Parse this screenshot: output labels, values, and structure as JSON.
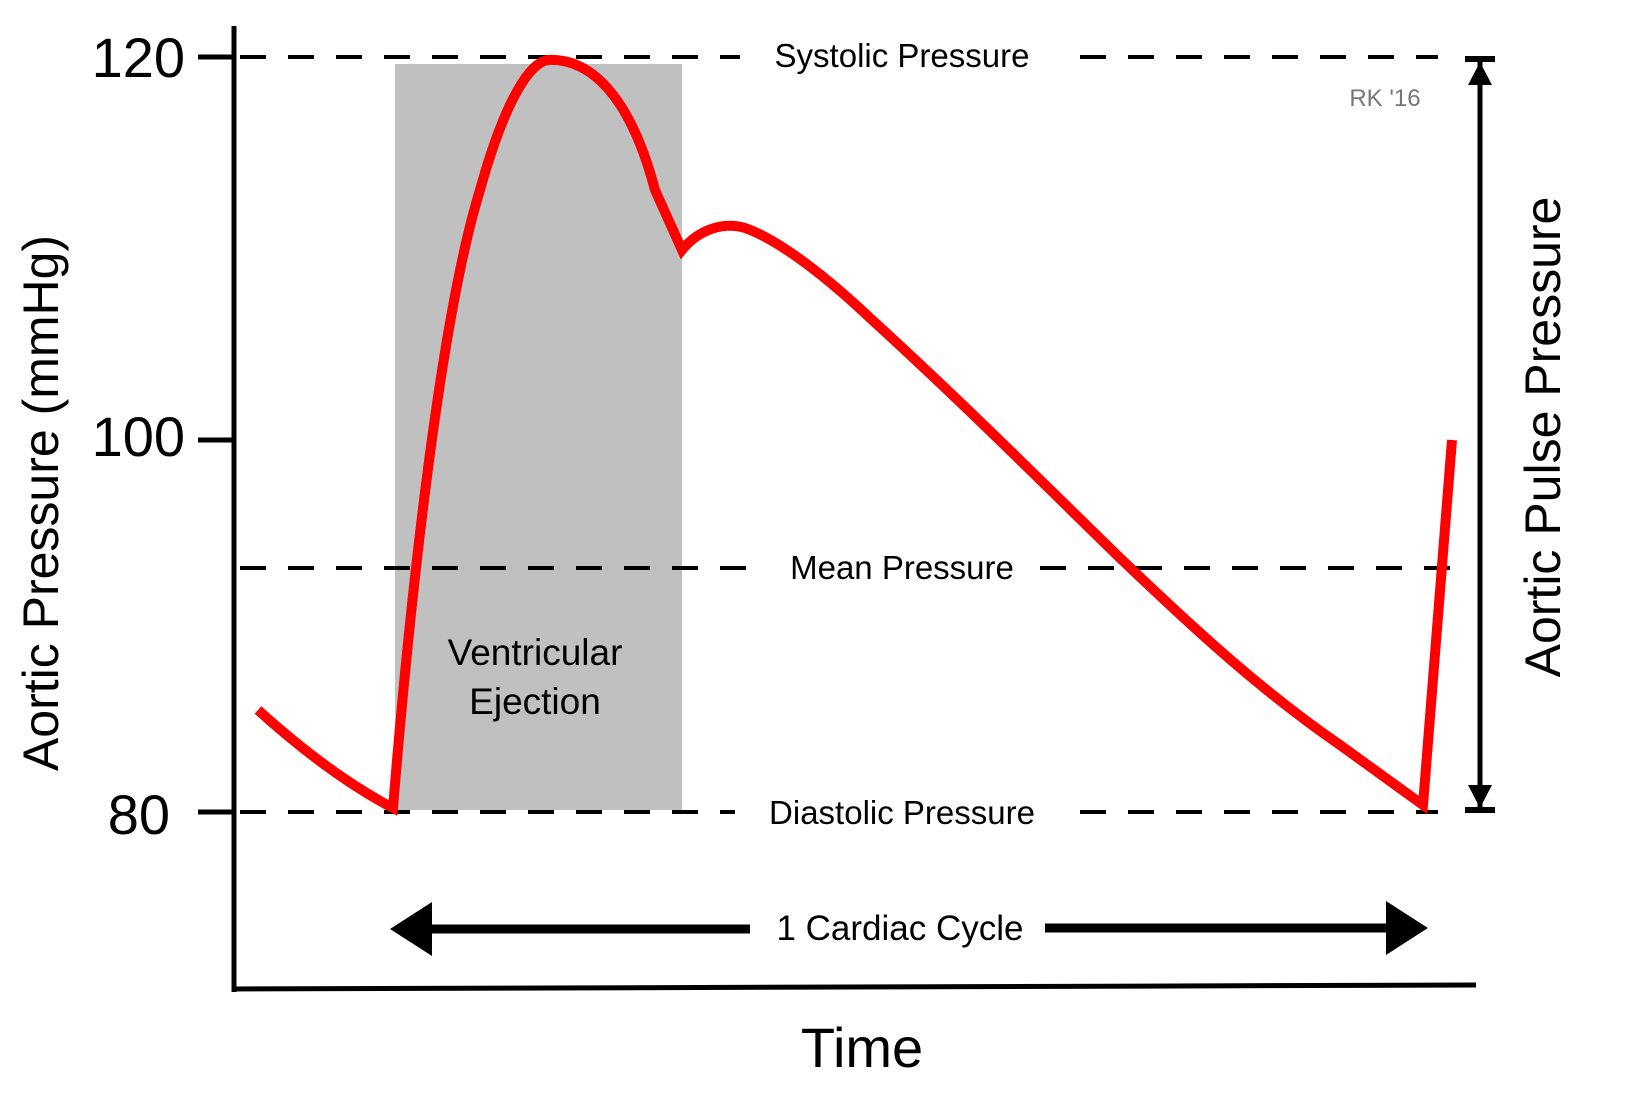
{
  "chart_data": {
    "type": "line",
    "title": "",
    "xlabel": "Time",
    "ylabel": "Aortic Pressure (mmHg)",
    "y_ticks": [
      "120",
      "100",
      "80"
    ],
    "ylim": [
      70,
      121
    ],
    "grid": false,
    "series": [
      {
        "name": "Aortic pressure waveform",
        "color": "#ff0000",
        "points_description": "Diastolic decay from ~85 to 80 mmHg, rapid rise during ventricular ejection to 120 mmHg peak, fall to ~111 mmHg dicrotic notch at end of ejection, small rebound ~112, then linear decay to 80 mmHg, followed by upstroke of next cycle to ~100 mmHg",
        "x": [
          0.0,
          0.11,
          0.125,
          0.2,
          0.26,
          0.32,
          0.36,
          0.4,
          0.65,
          0.95,
          0.96,
          0.985
        ],
        "y": [
          85.5,
          80.0,
          80.0,
          110.0,
          120.0,
          116.0,
          111.0,
          112.0,
          94.0,
          80.3,
          80.3,
          100.0
        ]
      }
    ],
    "reference_lines": [
      {
        "label": "Systolic Pressure",
        "value": 120,
        "style": "dashed"
      },
      {
        "label": "Mean Pressure",
        "value": 93.3,
        "style": "dashed"
      },
      {
        "label": "Diastolic Pressure",
        "value": 80,
        "style": "dashed"
      }
    ],
    "shaded_regions": [
      {
        "label": "Ventricular Ejection",
        "color": "#c0c0c0"
      }
    ],
    "annotations": [
      {
        "text": "Aortic Pulse Pressure",
        "type": "double-arrow",
        "from": 80,
        "to": 120
      },
      {
        "text": "1 Cardiac Cycle",
        "type": "double-arrow",
        "orientation": "horizontal"
      },
      {
        "text": "RK '16",
        "type": "signature"
      }
    ]
  },
  "axes": {
    "y_ticks": [
      {
        "label": "120"
      },
      {
        "label": "100"
      },
      {
        "label": "80"
      }
    ],
    "ylabel": "Aortic Pressure (mmHg)",
    "xlabel": "Time"
  },
  "labels": {
    "systolic": "Systolic Pressure",
    "mean": "Mean Pressure",
    "diastolic": "Diastolic Pressure",
    "ejection_line1": "Ventricular",
    "ejection_line2": "Ejection",
    "cardiac_cycle": "1 Cardiac Cycle",
    "pulse_pressure": "Aortic Pulse Pressure",
    "signature": "RK '16"
  },
  "colors": {
    "curve": "#ff0000",
    "shade": "#c0c0c0",
    "axis": "#000000",
    "signature": "#777777"
  }
}
